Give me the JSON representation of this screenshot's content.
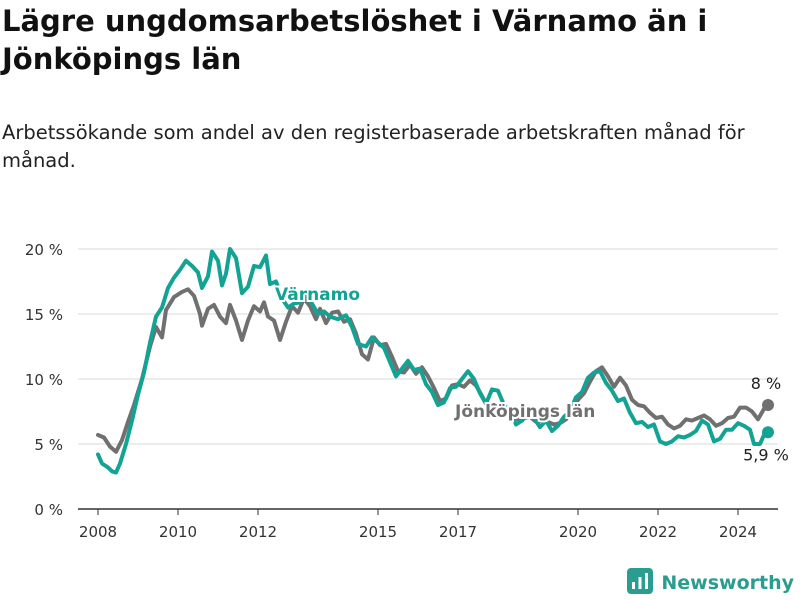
{
  "title": "Lägre ungdomsarbetslöshet i Värnamo än i Jönköpings län",
  "subtitle": "Arbetssökande som andel av den registerbaserade arbetskraften månad för månad.",
  "brand": "Newsworthy",
  "colors": {
    "varnamo": "#13a394",
    "lan": "#707070",
    "grid": "#d9d9d9",
    "axis": "#333333"
  },
  "chart_data": {
    "type": "line",
    "title": "Lägre ungdomsarbetslöshet i Värnamo än i Jönköpings län",
    "subtitle": "Arbetssökande som andel av den registerbaserade arbetskraften månad för månad.",
    "ylim": [
      0,
      20
    ],
    "y_ticks": [
      0,
      5,
      10,
      15,
      20
    ],
    "y_tick_labels": [
      "0 %",
      "5 %",
      "10 %",
      "15 %",
      "20 %"
    ],
    "x_ticks": [
      2008,
      2010,
      2012,
      2015,
      2017,
      2020,
      2022,
      2024
    ],
    "xlim": [
      2007.5,
      2025.0
    ],
    "grid": true,
    "series": [
      {
        "name": "Jönköpings län",
        "end_label": "8 %",
        "points": [
          [
            2008.0,
            5.7
          ],
          [
            2008.15,
            5.5
          ],
          [
            2008.3,
            4.8
          ],
          [
            2008.45,
            4.4
          ],
          [
            2008.6,
            5.3
          ],
          [
            2008.75,
            6.7
          ],
          [
            2008.9,
            8.0
          ],
          [
            2009.1,
            10.0
          ],
          [
            2009.3,
            12.5
          ],
          [
            2009.45,
            14.0
          ],
          [
            2009.6,
            13.2
          ],
          [
            2009.7,
            15.3
          ],
          [
            2009.9,
            16.3
          ],
          [
            2010.1,
            16.7
          ],
          [
            2010.25,
            16.9
          ],
          [
            2010.4,
            16.4
          ],
          [
            2010.55,
            15.0
          ],
          [
            2010.6,
            14.1
          ],
          [
            2010.75,
            15.4
          ],
          [
            2010.9,
            15.7
          ],
          [
            2011.05,
            14.8
          ],
          [
            2011.2,
            14.3
          ],
          [
            2011.3,
            15.7
          ],
          [
            2011.45,
            14.5
          ],
          [
            2011.6,
            13.0
          ],
          [
            2011.75,
            14.5
          ],
          [
            2011.9,
            15.6
          ],
          [
            2012.05,
            15.2
          ],
          [
            2012.15,
            15.9
          ],
          [
            2012.25,
            14.8
          ],
          [
            2012.4,
            14.5
          ],
          [
            2012.55,
            13.0
          ],
          [
            2012.7,
            14.4
          ],
          [
            2012.85,
            15.6
          ],
          [
            2013.0,
            15.1
          ],
          [
            2013.15,
            16.2
          ],
          [
            2013.3,
            15.6
          ],
          [
            2013.45,
            14.6
          ],
          [
            2013.55,
            15.4
          ],
          [
            2013.7,
            14.3
          ],
          [
            2013.85,
            15.1
          ],
          [
            2014.0,
            15.2
          ],
          [
            2014.15,
            14.4
          ],
          [
            2014.3,
            14.6
          ],
          [
            2014.45,
            13.5
          ],
          [
            2014.6,
            11.9
          ],
          [
            2014.75,
            11.5
          ],
          [
            2014.9,
            13.2
          ],
          [
            2015.05,
            12.6
          ],
          [
            2015.2,
            12.7
          ],
          [
            2015.35,
            11.7
          ],
          [
            2015.5,
            10.6
          ],
          [
            2015.65,
            10.5
          ],
          [
            2015.8,
            11.1
          ],
          [
            2015.95,
            10.4
          ],
          [
            2016.1,
            10.9
          ],
          [
            2016.25,
            10.2
          ],
          [
            2016.4,
            9.3
          ],
          [
            2016.55,
            8.3
          ],
          [
            2016.7,
            8.5
          ],
          [
            2016.85,
            9.5
          ],
          [
            2017.0,
            9.6
          ],
          [
            2017.15,
            9.4
          ],
          [
            2017.3,
            9.9
          ],
          [
            2017.45,
            9.5
          ],
          [
            2017.6,
            8.7
          ],
          [
            2017.75,
            7.8
          ],
          [
            2017.9,
            8.0
          ],
          [
            2018.05,
            7.7
          ],
          [
            2018.2,
            7.5
          ],
          [
            2018.35,
            7.4
          ],
          [
            2018.5,
            6.9
          ],
          [
            2018.65,
            7.0
          ],
          [
            2018.8,
            7.1
          ],
          [
            2018.95,
            6.7
          ],
          [
            2019.1,
            6.8
          ],
          [
            2019.25,
            6.7
          ],
          [
            2019.4,
            6.5
          ],
          [
            2019.55,
            6.6
          ],
          [
            2019.7,
            6.9
          ],
          [
            2019.85,
            7.6
          ],
          [
            2020.0,
            8.4
          ],
          [
            2020.15,
            8.9
          ],
          [
            2020.3,
            9.8
          ],
          [
            2020.45,
            10.6
          ],
          [
            2020.6,
            10.9
          ],
          [
            2020.75,
            10.2
          ],
          [
            2020.9,
            9.4
          ],
          [
            2021.05,
            10.1
          ],
          [
            2021.2,
            9.5
          ],
          [
            2021.35,
            8.4
          ],
          [
            2021.5,
            8.0
          ],
          [
            2021.65,
            7.9
          ],
          [
            2021.8,
            7.4
          ],
          [
            2021.95,
            7.0
          ],
          [
            2022.1,
            7.1
          ],
          [
            2022.25,
            6.5
          ],
          [
            2022.4,
            6.2
          ],
          [
            2022.55,
            6.4
          ],
          [
            2022.7,
            6.9
          ],
          [
            2022.85,
            6.8
          ],
          [
            2023.0,
            7.0
          ],
          [
            2023.15,
            7.2
          ],
          [
            2023.3,
            6.9
          ],
          [
            2023.45,
            6.4
          ],
          [
            2023.6,
            6.6
          ],
          [
            2023.75,
            7.0
          ],
          [
            2023.9,
            7.1
          ],
          [
            2024.05,
            7.8
          ],
          [
            2024.2,
            7.8
          ],
          [
            2024.35,
            7.5
          ],
          [
            2024.5,
            6.9
          ],
          [
            2024.65,
            7.7
          ],
          [
            2024.75,
            8.0
          ]
        ]
      },
      {
        "name": "Värnamo",
        "end_label": "5,9 %",
        "points": [
          [
            2008.0,
            4.2
          ],
          [
            2008.1,
            3.5
          ],
          [
            2008.25,
            3.2
          ],
          [
            2008.35,
            2.9
          ],
          [
            2008.45,
            2.8
          ],
          [
            2008.55,
            3.5
          ],
          [
            2008.7,
            5.0
          ],
          [
            2008.85,
            6.8
          ],
          [
            2009.0,
            8.8
          ],
          [
            2009.15,
            10.5
          ],
          [
            2009.3,
            12.8
          ],
          [
            2009.45,
            14.8
          ],
          [
            2009.6,
            15.5
          ],
          [
            2009.75,
            17.0
          ],
          [
            2009.9,
            17.8
          ],
          [
            2010.05,
            18.4
          ],
          [
            2010.2,
            19.1
          ],
          [
            2010.35,
            18.7
          ],
          [
            2010.5,
            18.2
          ],
          [
            2010.6,
            17.0
          ],
          [
            2010.75,
            17.9
          ],
          [
            2010.85,
            19.8
          ],
          [
            2011.0,
            19.1
          ],
          [
            2011.1,
            17.2
          ],
          [
            2011.2,
            18.1
          ],
          [
            2011.3,
            20.0
          ],
          [
            2011.45,
            19.3
          ],
          [
            2011.6,
            16.6
          ],
          [
            2011.75,
            17.1
          ],
          [
            2011.9,
            18.7
          ],
          [
            2012.05,
            18.6
          ],
          [
            2012.2,
            19.5
          ],
          [
            2012.3,
            17.3
          ],
          [
            2012.45,
            17.5
          ],
          [
            2012.6,
            16.2
          ],
          [
            2012.75,
            15.5
          ],
          [
            2012.9,
            15.8
          ],
          [
            2013.05,
            15.9
          ],
          [
            2013.2,
            16.5
          ],
          [
            2013.35,
            15.8
          ],
          [
            2013.5,
            15.0
          ],
          [
            2013.65,
            15.2
          ],
          [
            2013.8,
            14.8
          ],
          [
            2014.0,
            14.6
          ],
          [
            2014.2,
            14.9
          ],
          [
            2014.35,
            14.0
          ],
          [
            2014.5,
            12.7
          ],
          [
            2014.7,
            12.5
          ],
          [
            2014.85,
            13.2
          ],
          [
            2015.0,
            12.8
          ],
          [
            2015.15,
            12.4
          ],
          [
            2015.3,
            11.3
          ],
          [
            2015.45,
            10.2
          ],
          [
            2015.6,
            10.8
          ],
          [
            2015.75,
            11.4
          ],
          [
            2015.9,
            10.7
          ],
          [
            2016.05,
            10.8
          ],
          [
            2016.2,
            9.6
          ],
          [
            2016.35,
            9.0
          ],
          [
            2016.5,
            8.0
          ],
          [
            2016.65,
            8.2
          ],
          [
            2016.8,
            9.3
          ],
          [
            2016.95,
            9.4
          ],
          [
            2017.1,
            10.0
          ],
          [
            2017.25,
            10.6
          ],
          [
            2017.4,
            10.0
          ],
          [
            2017.55,
            8.9
          ],
          [
            2017.7,
            8.1
          ],
          [
            2017.85,
            9.2
          ],
          [
            2018.0,
            9.1
          ],
          [
            2018.15,
            8.0
          ],
          [
            2018.3,
            7.6
          ],
          [
            2018.45,
            6.5
          ],
          [
            2018.6,
            6.8
          ],
          [
            2018.75,
            7.3
          ],
          [
            2018.9,
            7.0
          ],
          [
            2019.05,
            6.3
          ],
          [
            2019.2,
            6.8
          ],
          [
            2019.35,
            6.0
          ],
          [
            2019.5,
            6.4
          ],
          [
            2019.65,
            7.1
          ],
          [
            2019.8,
            7.5
          ],
          [
            2019.95,
            8.6
          ],
          [
            2020.1,
            9.0
          ],
          [
            2020.25,
            10.1
          ],
          [
            2020.4,
            10.5
          ],
          [
            2020.55,
            10.6
          ],
          [
            2020.7,
            9.7
          ],
          [
            2020.85,
            9.1
          ],
          [
            2021.0,
            8.3
          ],
          [
            2021.15,
            8.5
          ],
          [
            2021.3,
            7.4
          ],
          [
            2021.45,
            6.6
          ],
          [
            2021.6,
            6.7
          ],
          [
            2021.75,
            6.3
          ],
          [
            2021.9,
            6.5
          ],
          [
            2022.05,
            5.2
          ],
          [
            2022.2,
            5.0
          ],
          [
            2022.35,
            5.2
          ],
          [
            2022.5,
            5.6
          ],
          [
            2022.65,
            5.5
          ],
          [
            2022.8,
            5.7
          ],
          [
            2022.95,
            6.0
          ],
          [
            2023.1,
            6.8
          ],
          [
            2023.25,
            6.5
          ],
          [
            2023.4,
            5.2
          ],
          [
            2023.55,
            5.4
          ],
          [
            2023.7,
            6.1
          ],
          [
            2023.85,
            6.1
          ],
          [
            2024.0,
            6.6
          ],
          [
            2024.15,
            6.4
          ],
          [
            2024.3,
            6.1
          ],
          [
            2024.4,
            5.0
          ],
          [
            2024.55,
            5.0
          ],
          [
            2024.65,
            5.7
          ],
          [
            2024.75,
            5.9
          ]
        ]
      }
    ]
  }
}
